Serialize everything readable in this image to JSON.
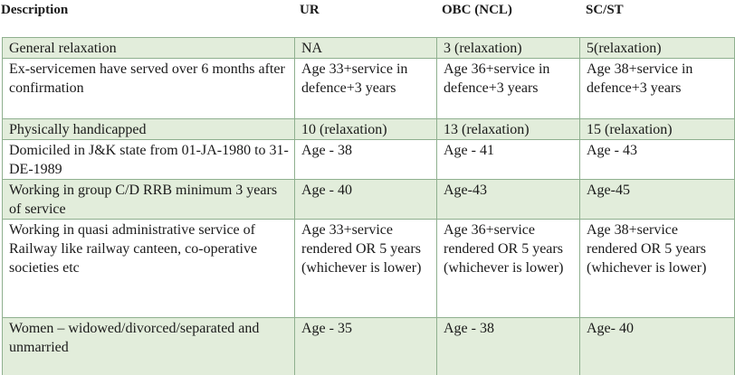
{
  "table": {
    "headers": [
      "Description",
      "UR",
      "OBC (NCL)",
      "SC/ST"
    ],
    "rows": [
      {
        "shaded": true,
        "height": 21,
        "cells": [
          "General relaxation",
          "NA",
          "3 (relaxation)",
          "5(relaxation)"
        ]
      },
      {
        "shaded": false,
        "height": 66,
        "cells": [
          "Ex-servicemen have served over 6 months after confirmation",
          "Age 33+service in defence+3 years",
          "Age 36+service in defence+3 years",
          "Age 38+service in defence+3 years"
        ]
      },
      {
        "shaded": true,
        "height": 21,
        "cells": [
          "Physically handicapped",
          "10 (relaxation)",
          "13 (relaxation)",
          "15 (relaxation)"
        ]
      },
      {
        "shaded": false,
        "height": 42,
        "cells": [
          "Domiciled in J&K state from 01-JA-1980 to 31-DE-1989",
          "Age - 38",
          "Age - 41",
          "Age - 43"
        ]
      },
      {
        "shaded": true,
        "height": 43,
        "cells": [
          "Working in group C/D RRB minimum 3 years of service",
          "Age - 40",
          "Age-43",
          "Age-45"
        ]
      },
      {
        "shaded": false,
        "height": 108,
        "cells": [
          "Working in quasi administrative service of Railway like railway canteen, co-operative societies etc",
          "Age 33+service rendered OR 5 years (whichever is lower)",
          "Age 36+service rendered OR 5 years (whichever is lower)",
          "Age 38+service rendered OR 5 years (whichever is lower)"
        ]
      },
      {
        "shaded": true,
        "height": 66,
        "cells": [
          "Women – widowed/divorced/separated and unmarried",
          "Age - 35",
          "Age - 38",
          "Age- 40"
        ]
      }
    ]
  }
}
